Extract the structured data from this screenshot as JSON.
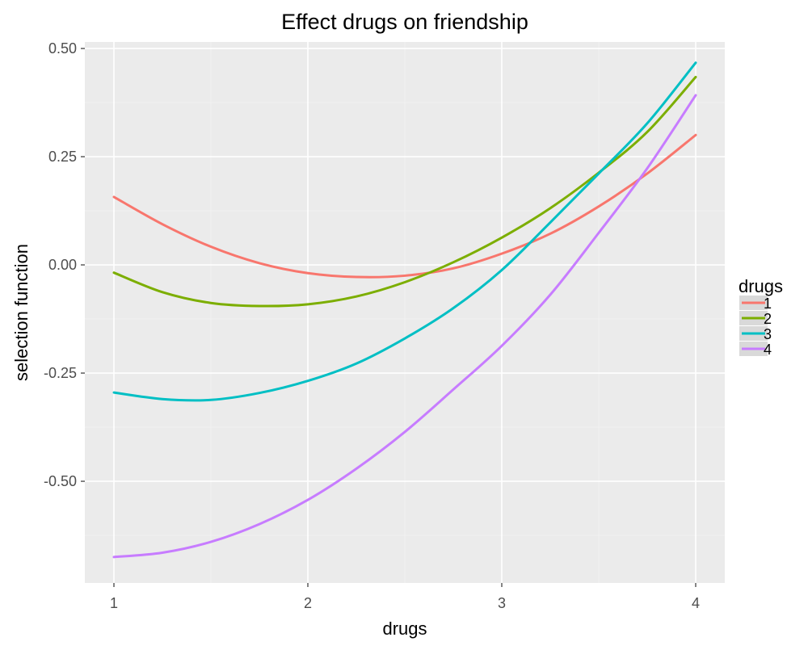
{
  "chart_data": {
    "type": "line",
    "title": "Effect drugs on friendship",
    "xlabel": "drugs",
    "ylabel": "selection function",
    "xlim": [
      0.85,
      4.15
    ],
    "ylim": [
      -0.735,
      0.515
    ],
    "x_ticks": [
      1,
      2,
      3,
      4
    ],
    "x_tick_labels": [
      "1",
      "2",
      "3",
      "4"
    ],
    "y_ticks": [
      -0.5,
      -0.25,
      0.0,
      0.25,
      0.5
    ],
    "y_tick_labels": [
      "-0.50",
      "-0.25",
      "0.00",
      "0.25",
      "0.50"
    ],
    "grid": true,
    "legend_position": "right",
    "legend_title": "drugs",
    "x": [
      1.0,
      1.25,
      1.5,
      1.75,
      2.0,
      2.25,
      2.5,
      2.75,
      3.0,
      3.25,
      3.5,
      3.75,
      4.0
    ],
    "series": [
      {
        "name": "1",
        "color": "#F8766D",
        "values": [
          0.157,
          0.094,
          0.042,
          0.004,
          -0.019,
          -0.028,
          -0.025,
          -0.008,
          0.026,
          0.072,
          0.135,
          0.211,
          0.3
        ]
      },
      {
        "name": "2",
        "color": "#7CAE00",
        "values": [
          -0.018,
          -0.063,
          -0.088,
          -0.095,
          -0.091,
          -0.073,
          -0.04,
          0.006,
          0.063,
          0.131,
          0.213,
          0.307,
          0.434
        ]
      },
      {
        "name": "3",
        "color": "#00BFC4",
        "values": [
          -0.295,
          -0.31,
          -0.312,
          -0.296,
          -0.268,
          -0.228,
          -0.17,
          -0.1,
          -0.012,
          0.098,
          0.211,
          0.327,
          0.467
        ]
      },
      {
        "name": "4",
        "color": "#C77CFF",
        "values": [
          -0.675,
          -0.665,
          -0.64,
          -0.599,
          -0.543,
          -0.471,
          -0.386,
          -0.288,
          -0.187,
          -0.069,
          0.074,
          0.223,
          0.392
        ]
      }
    ]
  }
}
